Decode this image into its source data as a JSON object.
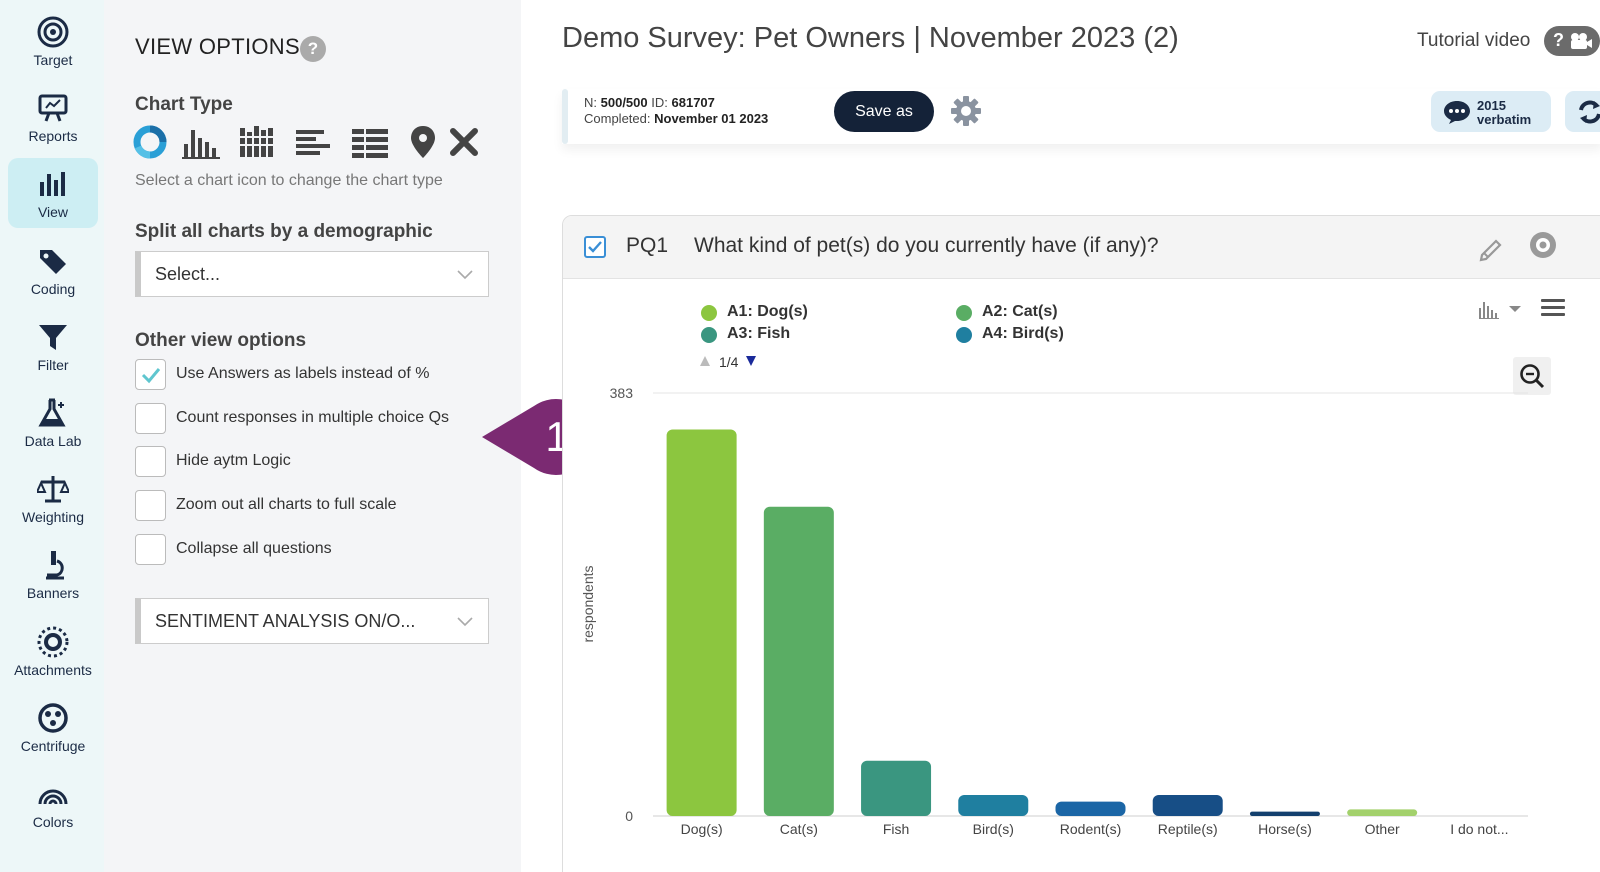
{
  "nav": [
    {
      "label": "Target",
      "icon": "target-icon"
    },
    {
      "label": "Reports",
      "icon": "presentation-icon"
    },
    {
      "label": "View",
      "icon": "bar-chart-icon",
      "active": true
    },
    {
      "label": "Coding",
      "icon": "tag-icon"
    },
    {
      "label": "Filter",
      "icon": "funnel-icon"
    },
    {
      "label": "Data Lab",
      "icon": "flask-icon"
    },
    {
      "label": "Weighting",
      "icon": "scale-icon"
    },
    {
      "label": "Banners",
      "icon": "microscope-icon"
    },
    {
      "label": "Attachments",
      "icon": "burst-icon"
    },
    {
      "label": "Centrifuge",
      "icon": "centrifuge-icon"
    },
    {
      "label": "Colors",
      "icon": "rainbow-icon"
    }
  ],
  "panel": {
    "title": "VIEW OPTIONS",
    "help": "?",
    "chart_type_label": "Chart Type",
    "chart_type_hint": "Select a chart icon to change the chart type",
    "split_label": "Split all charts by a demographic",
    "split_placeholder": "Select...",
    "other_label": "Other view options",
    "options": [
      {
        "label": "Use Answers as labels instead of %",
        "checked": true
      },
      {
        "label": "Count responses in multiple choice Qs",
        "checked": false
      },
      {
        "label": "Hide aytm Logic",
        "checked": false
      },
      {
        "label": "Zoom out all charts to full scale",
        "checked": false
      },
      {
        "label": "Collapse all questions",
        "checked": false
      }
    ],
    "sentiment_select": "SENTIMENT ANALYSIS ON/O..."
  },
  "callout": {
    "number": "1",
    "color": "#7b2a72"
  },
  "header": {
    "survey_title": "Demo Survey: Pet Owners | November 2023 (2)",
    "tutorial": "Tutorial video",
    "n_label": "N:",
    "n_value": "500/500",
    "id_label": "ID:",
    "id_value": "681707",
    "completed_label": "Completed:",
    "completed_value": "November 01 2023",
    "save_as": "Save as",
    "verbatim_count": "2015",
    "verbatim_label": "verbatim"
  },
  "question": {
    "id": "PQ1",
    "text": "What kind of pet(s) do you currently have (if any)?",
    "legend": [
      {
        "label": "A1: Dog(s)",
        "color": "#8cc63f"
      },
      {
        "label": "A2: Cat(s)",
        "color": "#5aad64"
      },
      {
        "label": "A3: Fish",
        "color": "#3a9680"
      },
      {
        "label": "A4: Bird(s)",
        "color": "#1f7fa0"
      }
    ],
    "legend_page": "1/4"
  },
  "chart_data": {
    "type": "bar",
    "categories": [
      "Dog(s)",
      "Cat(s)",
      "Fish",
      "Bird(s)",
      "Rodent(s)",
      "Reptile(s)",
      "Horse(s)",
      "Other",
      "I do not..."
    ],
    "values": [
      350,
      280,
      50,
      19,
      13,
      19,
      4,
      6,
      0
    ],
    "colors": [
      "#8cc63f",
      "#5aad64",
      "#3a9680",
      "#1f7fa0",
      "#1b66a6",
      "#174e86",
      "#14406e",
      "#a3d16c",
      "#a3d16c"
    ],
    "ylabel": "respondents",
    "yticks": [
      "0",
      "383"
    ],
    "ylim": [
      0,
      383
    ]
  }
}
